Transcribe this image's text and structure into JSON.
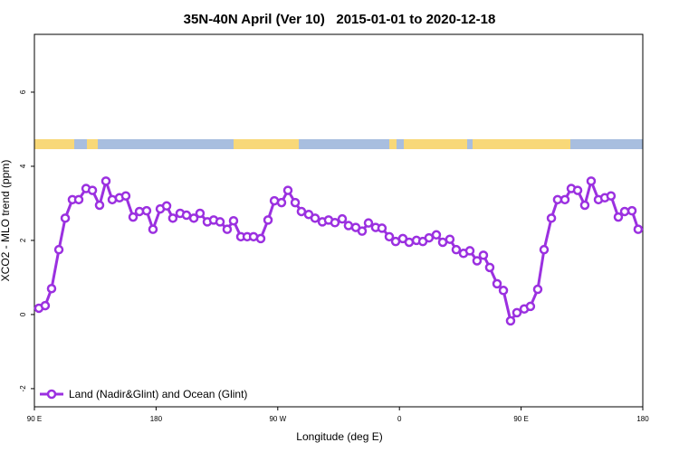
{
  "chart_data": {
    "type": "line",
    "title": "35N-40N April (Ver 10)   2015-01-01 to 2020-12-18",
    "xlabel": "Longitude (deg E)",
    "ylabel": "XCO2 - MLO trend (ppm)",
    "xlim": [
      90,
      540
    ],
    "ylim": [
      -2.49,
      7.56
    ],
    "xticks": [
      {
        "value": 90,
        "label": "90 E"
      },
      {
        "value": 180,
        "label": "180"
      },
      {
        "value": 270,
        "label": "90 W"
      },
      {
        "value": 360,
        "label": "0"
      },
      {
        "value": 450,
        "label": "90 E"
      },
      {
        "value": 540,
        "label": "180"
      }
    ],
    "yticks": [
      -2,
      0,
      2,
      4,
      6
    ],
    "legend": "bottomleft",
    "x": [
      93.3,
      98.0,
      102.7,
      108.1,
      112.8,
      118.1,
      122.8,
      128.2,
      132.9,
      138.2,
      142.9,
      147.6,
      152.9,
      157.6,
      163.0,
      167.7,
      173.0,
      177.7,
      183.1,
      187.8,
      192.4,
      197.8,
      202.5,
      207.9,
      212.5,
      217.9,
      222.6,
      227.3,
      232.6,
      237.3,
      242.7,
      247.4,
      252.1,
      257.4,
      262.8,
      267.5,
      272.8,
      277.5,
      282.9,
      287.5,
      292.9,
      297.6,
      303.0,
      307.6,
      312.3,
      317.7,
      322.3,
      327.7,
      332.4,
      337.1,
      342.4,
      347.1,
      352.5,
      357.2,
      362.5,
      367.2,
      372.6,
      377.3,
      381.9,
      387.3,
      392.0,
      397.3,
      402.0,
      407.4,
      412.1,
      417.4,
      422.1,
      426.8,
      432.2,
      436.9,
      442.2,
      446.9,
      452.3,
      456.9,
      462.3,
      467.0,
      472.4,
      477.0,
      482.4,
      487.1,
      491.8,
      497.1,
      501.8,
      507.2,
      511.9,
      516.5,
      521.9,
      526.6,
      532.0,
      536.6
    ],
    "series": [
      {
        "name": "Land (Nadir&Glint) and Ocean (Glint)",
        "color": "#9b30e0",
        "values": [
          0.17,
          0.24,
          0.7,
          1.75,
          2.6,
          3.1,
          3.1,
          3.4,
          3.35,
          2.95,
          3.6,
          3.1,
          3.15,
          3.2,
          2.63,
          2.78,
          2.8,
          2.3,
          2.85,
          2.93,
          2.6,
          2.73,
          2.68,
          2.6,
          2.73,
          2.5,
          2.55,
          2.5,
          2.3,
          2.53,
          2.1,
          2.1,
          2.1,
          2.05,
          2.55,
          3.07,
          3.02,
          3.35,
          3.02,
          2.78,
          2.7,
          2.6,
          2.5,
          2.55,
          2.48,
          2.58,
          2.4,
          2.35,
          2.25,
          2.47,
          2.35,
          2.33,
          2.1,
          1.97,
          2.05,
          1.95,
          2.0,
          1.97,
          2.07,
          2.15,
          1.95,
          2.03,
          1.75,
          1.65,
          1.72,
          1.45,
          1.6,
          1.27,
          0.83,
          0.65,
          -0.17,
          0.05,
          0.15,
          0.22,
          0.68,
          1.75,
          2.6,
          3.1,
          3.1,
          3.4,
          3.35,
          2.95,
          3.6,
          3.1,
          3.15,
          3.2,
          2.63,
          2.78,
          2.8,
          2.3
        ]
      }
    ]
  }
}
